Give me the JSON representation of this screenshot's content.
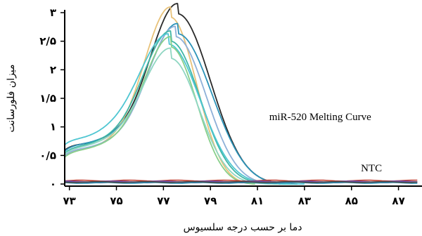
{
  "chart_data": {
    "type": "line",
    "xlabel": "دما بر حسب درجه سلسیوس",
    "ylabel": "میزان فلورسانت",
    "xlim": [
      72.8,
      88
    ],
    "ylim": [
      0,
      3
    ],
    "x_ticks": [
      {
        "value": 73,
        "label": "۷۳"
      },
      {
        "value": 75,
        "label": "۷۵"
      },
      {
        "value": 77,
        "label": "۷۷"
      },
      {
        "value": 79,
        "label": "۷۹"
      },
      {
        "value": 81,
        "label": "۸۱"
      },
      {
        "value": 83,
        "label": "۸۳"
      },
      {
        "value": 85,
        "label": "۸۵"
      },
      {
        "value": 87,
        "label": "۸۷"
      }
    ],
    "y_ticks": [
      {
        "value": 0,
        "label": "۰"
      },
      {
        "value": 0.5,
        "label": "۰/۵"
      },
      {
        "value": 1,
        "label": "۱"
      },
      {
        "value": 1.5,
        "label": "۱/۵"
      },
      {
        "value": 2,
        "label": "۲"
      },
      {
        "value": 2.5,
        "label": "۲/۵"
      },
      {
        "value": 3,
        "label": "۳"
      }
    ],
    "grid": false,
    "legend": "none",
    "annotations": [
      {
        "text": "miR-520 Melting Curve",
        "x": 81.5,
        "y": 1.12
      },
      {
        "text": "NTC",
        "x": 85.4,
        "y": 0.22
      }
    ],
    "series": [
      {
        "color": "#2a2a2a",
        "peak_x": 77.6,
        "peak_y": 2.98,
        "base_y": 0.62,
        "min_x": 73.7,
        "min_y": 0.55,
        "sigma_left": 1.15,
        "sigma_right": 1.4,
        "end_x": 82.7
      },
      {
        "color": "#e8c27a",
        "peak_x": 77.3,
        "peak_y": 2.92,
        "base_y": 0.5,
        "min_x": 73.6,
        "min_y": 0.45,
        "sigma_left": 1.1,
        "sigma_right": 1.1,
        "end_x": 80.9
      },
      {
        "color": "#2c93b8",
        "peak_x": 77.6,
        "peak_y": 2.63,
        "base_y": 0.6,
        "min_x": 73.6,
        "min_y": 0.55,
        "sigma_left": 1.2,
        "sigma_right": 1.45,
        "end_x": 82.2
      },
      {
        "color": "#8fb0d8",
        "peak_x": 77.5,
        "peak_y": 2.58,
        "base_y": 0.52,
        "min_x": 73.6,
        "min_y": 0.47,
        "sigma_left": 1.15,
        "sigma_right": 1.3,
        "end_x": 82.0
      },
      {
        "color": "#3fb6a6",
        "peak_x": 77.3,
        "peak_y": 2.5,
        "base_y": 0.57,
        "min_x": 73.5,
        "min_y": 0.52,
        "sigma_left": 1.15,
        "sigma_right": 1.25,
        "end_x": 82.4
      },
      {
        "color": "#4fc6d2",
        "peak_x": 77.2,
        "peak_y": 2.45,
        "base_y": 0.72,
        "min_x": 73.6,
        "min_y": 0.65,
        "sigma_left": 1.2,
        "sigma_right": 1.35,
        "end_x": 83.0
      },
      {
        "color": "#88cf8a",
        "peak_x": 77.3,
        "peak_y": 2.4,
        "base_y": 0.5,
        "min_x": 73.5,
        "min_y": 0.45,
        "sigma_left": 1.1,
        "sigma_right": 1.1,
        "end_x": 80.9
      },
      {
        "color": "#8fd6c2",
        "peak_x": 77.3,
        "peak_y": 2.2,
        "base_y": 0.55,
        "min_x": 73.5,
        "min_y": 0.5,
        "sigma_left": 1.15,
        "sigma_right": 1.2,
        "end_x": 81.9
      }
    ],
    "ntc_series": [
      {
        "color": "#c0392b",
        "level": 0.06
      },
      {
        "color": "#2d3e9a",
        "level": 0.03
      },
      {
        "color": "#7a4fa0",
        "level": 0.045
      },
      {
        "color": "#2c8fb0",
        "level": 0.02
      },
      {
        "color": "#4a4a4a",
        "level": 0.035
      }
    ]
  }
}
